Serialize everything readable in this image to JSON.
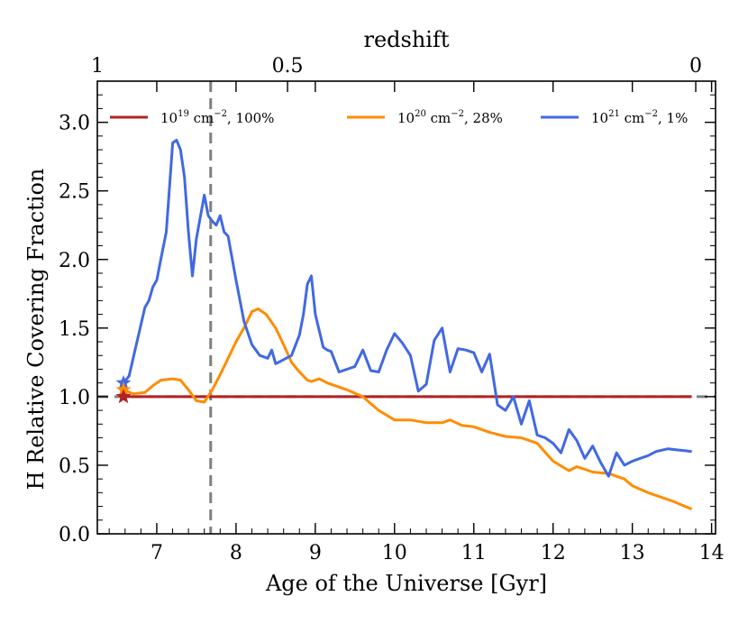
{
  "chart_data": {
    "type": "line",
    "title": "",
    "xlabel": "Age of the Universe [Gyr]",
    "ylabel": "H Relative Covering Fraction",
    "top_xlabel": "redshift",
    "xlim": [
      6.25,
      14.05
    ],
    "ylim": [
      0.0,
      3.3
    ],
    "grid": false,
    "legend_position": "top",
    "x_ticks": [
      7,
      8,
      9,
      10,
      11,
      12,
      13,
      14
    ],
    "y_ticks": [
      0.0,
      0.5,
      1.0,
      1.5,
      2.0,
      2.5,
      3.0
    ],
    "x_tick_labels": [
      "7",
      "8",
      "9",
      "10",
      "11",
      "12",
      "13",
      "14"
    ],
    "y_tick_labels": [
      "0.0",
      "0.5",
      "1.0",
      "1.5",
      "2.0",
      "2.5",
      "3.0"
    ],
    "top_ticks": [
      {
        "label": "1",
        "age": 6.2
      },
      {
        "label": "0.5",
        "age": 8.65
      },
      {
        "label": "0",
        "age": 13.8
      }
    ],
    "vline": {
      "x": 7.68,
      "color": "#7f7f7f",
      "style": "dashed"
    },
    "hline": {
      "y": 1.0,
      "color": "#7f7f7f",
      "style": "dashed"
    },
    "series": [
      {
        "name": "10^19 cm^-2, 100%",
        "legend": {
          "base": "10",
          "exp": "19",
          "mid": " cm",
          "exp2": "−2",
          "tail": ", 100%"
        },
        "color": "#b22222",
        "marker": "star",
        "x": [
          6.58,
          7.0,
          8.0,
          9.0,
          10.0,
          11.0,
          12.0,
          13.0,
          13.75
        ],
        "y": [
          1.0,
          1.0,
          1.0,
          1.0,
          1.0,
          1.0,
          1.0,
          1.0,
          1.0
        ]
      },
      {
        "name": "10^20 cm^-2, 28%",
        "legend": {
          "base": "10",
          "exp": "20",
          "mid": " cm",
          "exp2": "−2",
          "tail": ", 28%"
        },
        "color": "#ff8c00",
        "marker": "star",
        "x": [
          6.58,
          6.7,
          6.85,
          6.95,
          7.05,
          7.2,
          7.3,
          7.4,
          7.5,
          7.6,
          7.7,
          7.8,
          7.9,
          8.0,
          8.1,
          8.2,
          8.28,
          8.38,
          8.5,
          8.6,
          8.7,
          8.8,
          8.9,
          8.95,
          9.05,
          9.15,
          9.25,
          9.4,
          9.6,
          9.8,
          10.0,
          10.2,
          10.4,
          10.6,
          10.7,
          10.85,
          11.0,
          11.2,
          11.4,
          11.6,
          11.8,
          12.0,
          12.2,
          12.3,
          12.5,
          12.7,
          12.9,
          13.0,
          13.2,
          13.5,
          13.75
        ],
        "y": [
          1.05,
          1.02,
          1.03,
          1.08,
          1.12,
          1.13,
          1.12,
          1.05,
          0.97,
          0.96,
          1.05,
          1.16,
          1.28,
          1.4,
          1.5,
          1.62,
          1.64,
          1.6,
          1.5,
          1.38,
          1.25,
          1.18,
          1.12,
          1.11,
          1.13,
          1.1,
          1.08,
          1.05,
          1.0,
          0.9,
          0.83,
          0.83,
          0.81,
          0.81,
          0.83,
          0.79,
          0.78,
          0.74,
          0.71,
          0.7,
          0.66,
          0.53,
          0.46,
          0.49,
          0.45,
          0.44,
          0.4,
          0.35,
          0.3,
          0.24,
          0.18
        ]
      },
      {
        "name": "10^21 cm^-2, 1%",
        "legend": {
          "base": "10",
          "exp": "21",
          "mid": " cm",
          "exp2": "−2",
          "tail": ", 1%"
        },
        "color": "#4169e1",
        "marker": "star",
        "x": [
          6.58,
          6.65,
          6.75,
          6.85,
          6.9,
          6.95,
          7.0,
          7.05,
          7.12,
          7.17,
          7.2,
          7.25,
          7.3,
          7.35,
          7.4,
          7.45,
          7.5,
          7.6,
          7.65,
          7.7,
          7.75,
          7.8,
          7.85,
          7.9,
          8.0,
          8.1,
          8.2,
          8.3,
          8.4,
          8.45,
          8.5,
          8.6,
          8.7,
          8.8,
          8.85,
          8.9,
          8.95,
          9.0,
          9.1,
          9.15,
          9.2,
          9.3,
          9.4,
          9.5,
          9.6,
          9.7,
          9.8,
          9.9,
          10.0,
          10.1,
          10.2,
          10.3,
          10.4,
          10.5,
          10.6,
          10.7,
          10.8,
          10.9,
          11.0,
          11.1,
          11.2,
          11.3,
          11.4,
          11.5,
          11.6,
          11.7,
          11.8,
          11.9,
          12.0,
          12.1,
          12.2,
          12.3,
          12.4,
          12.5,
          12.6,
          12.7,
          12.8,
          12.9,
          13.0,
          13.1,
          13.2,
          13.3,
          13.45,
          13.6,
          13.75
        ],
        "y": [
          1.1,
          1.15,
          1.4,
          1.65,
          1.7,
          1.8,
          1.85,
          2.0,
          2.2,
          2.6,
          2.85,
          2.87,
          2.8,
          2.6,
          2.2,
          1.88,
          2.15,
          2.47,
          2.32,
          2.28,
          2.25,
          2.32,
          2.2,
          2.17,
          1.85,
          1.55,
          1.38,
          1.3,
          1.28,
          1.34,
          1.24,
          1.27,
          1.3,
          1.45,
          1.6,
          1.82,
          1.88,
          1.6,
          1.36,
          1.34,
          1.33,
          1.18,
          1.2,
          1.22,
          1.34,
          1.19,
          1.18,
          1.34,
          1.46,
          1.39,
          1.3,
          1.04,
          1.09,
          1.41,
          1.5,
          1.18,
          1.35,
          1.34,
          1.32,
          1.18,
          1.31,
          0.94,
          0.9,
          1.0,
          0.8,
          0.97,
          0.72,
          0.7,
          0.66,
          0.59,
          0.76,
          0.68,
          0.55,
          0.64,
          0.52,
          0.42,
          0.59,
          0.5,
          0.53,
          0.55,
          0.57,
          0.6,
          0.62,
          0.61,
          0.6
        ]
      }
    ]
  }
}
